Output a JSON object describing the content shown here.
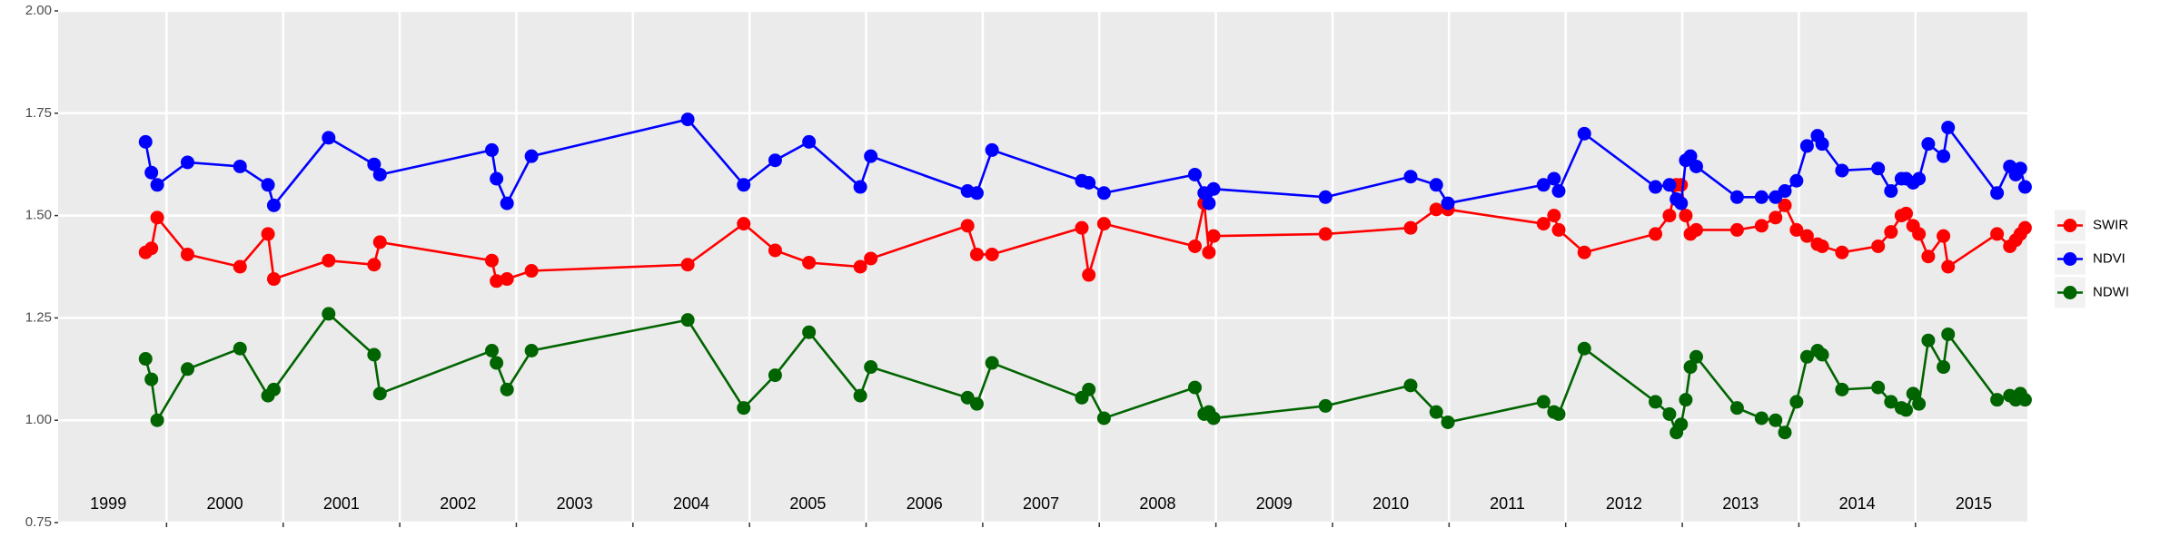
{
  "chart_data": {
    "type": "line",
    "x": [
      1999.82,
      1999.87,
      1999.92,
      2000.18,
      2000.63,
      2000.87,
      2000.92,
      2001.39,
      2001.78,
      2001.83,
      2002.79,
      2002.83,
      2002.92,
      2003.13,
      2004.47,
      2004.95,
      2005.22,
      2005.51,
      2005.95,
      2006.04,
      2006.87,
      2006.95,
      2007.08,
      2007.85,
      2007.91,
      2008.04,
      2008.82,
      2008.9,
      2008.94,
      2008.98,
      2009.94,
      2010.67,
      2010.89,
      2010.99,
      2011.81,
      2011.9,
      2011.94,
      2012.16,
      2012.77,
      2012.89,
      2012.95,
      2012.99,
      2013.03,
      2013.07,
      2013.12,
      2013.47,
      2013.68,
      2013.8,
      2013.88,
      2013.98,
      2014.07,
      2014.16,
      2014.2,
      2014.37,
      2014.68,
      2014.79,
      2014.88,
      2014.92,
      2014.98,
      2015.03,
      2015.11,
      2015.24,
      2015.28,
      2015.7,
      2015.81,
      2015.86,
      2015.9,
      2015.94
    ],
    "series": [
      {
        "name": "SWIR",
        "color": "#ff0000",
        "values": [
          1.41,
          1.42,
          1.495,
          1.405,
          1.375,
          1.455,
          1.345,
          1.39,
          1.38,
          1.435,
          1.39,
          1.34,
          1.345,
          1.365,
          1.38,
          1.48,
          1.415,
          1.385,
          1.375,
          1.395,
          1.475,
          1.405,
          1.405,
          1.47,
          1.355,
          1.48,
          1.425,
          1.53,
          1.41,
          1.45,
          1.455,
          1.47,
          1.515,
          1.515,
          1.48,
          1.5,
          1.465,
          1.41,
          1.455,
          1.5,
          1.575,
          1.575,
          1.5,
          1.455,
          1.465,
          1.465,
          1.475,
          1.495,
          1.525,
          1.465,
          1.45,
          1.43,
          1.425,
          1.41,
          1.425,
          1.46,
          1.5,
          1.505,
          1.475,
          1.455,
          1.4,
          1.45,
          1.375,
          1.455,
          1.425,
          1.44,
          1.455,
          1.47
        ]
      },
      {
        "name": "NDVI",
        "color": "#0000ff",
        "values": [
          1.68,
          1.605,
          1.575,
          1.63,
          1.62,
          1.575,
          1.525,
          1.69,
          1.625,
          1.6,
          1.66,
          1.59,
          1.53,
          1.645,
          1.735,
          1.575,
          1.635,
          1.68,
          1.57,
          1.645,
          1.56,
          1.555,
          1.66,
          1.585,
          1.58,
          1.555,
          1.6,
          1.555,
          1.53,
          1.565,
          1.545,
          1.595,
          1.575,
          1.53,
          1.575,
          1.59,
          1.56,
          1.7,
          1.57,
          1.575,
          1.54,
          1.53,
          1.635,
          1.645,
          1.62,
          1.545,
          1.545,
          1.545,
          1.56,
          1.585,
          1.67,
          1.695,
          1.675,
          1.61,
          1.615,
          1.56,
          1.59,
          1.59,
          1.58,
          1.59,
          1.675,
          1.645,
          1.715,
          1.555,
          1.62,
          1.6,
          1.615,
          1.57
        ]
      },
      {
        "name": "NDWI",
        "color": "#006400",
        "values": [
          1.15,
          1.1,
          1.0,
          1.125,
          1.175,
          1.06,
          1.075,
          1.26,
          1.16,
          1.065,
          1.17,
          1.14,
          1.075,
          1.17,
          1.245,
          1.03,
          1.11,
          1.215,
          1.06,
          1.13,
          1.055,
          1.04,
          1.14,
          1.055,
          1.075,
          1.005,
          1.08,
          1.015,
          1.02,
          1.005,
          1.035,
          1.085,
          1.02,
          0.995,
          1.045,
          1.02,
          1.015,
          1.175,
          1.045,
          1.015,
          0.97,
          0.99,
          1.05,
          1.13,
          1.155,
          1.03,
          1.005,
          1.0,
          0.97,
          1.045,
          1.155,
          1.17,
          1.16,
          1.075,
          1.08,
          1.045,
          1.03,
          1.025,
          1.065,
          1.04,
          1.195,
          1.13,
          1.21,
          1.05,
          1.06,
          1.05,
          1.065,
          1.05
        ]
      }
    ],
    "xlim": [
      1999.07,
      2015.96
    ],
    "xticks": [
      2000,
      2001,
      2002,
      2003,
      2004,
      2005,
      2006,
      2007,
      2008,
      2009,
      2010,
      2011,
      2012,
      2013,
      2014,
      2015
    ],
    "ylim": [
      0.75,
      2.0
    ],
    "yticks": [
      0.75,
      {
        "value": 1,
        "label": "1.00"
      },
      1.25,
      {
        "value": 1.5,
        "label": "1.50"
      },
      {
        "value": 1.75,
        "label": "1.75"
      },
      {
        "value": 2,
        "label": "2.00"
      }
    ],
    "grid": true,
    "legend": "right",
    "annotations": [
      {
        "text": "1999",
        "x": 1999.5
      },
      {
        "text": "2000",
        "x": 2000.5
      },
      {
        "text": "2001",
        "x": 2001.5
      },
      {
        "text": "2002",
        "x": 2002.5
      },
      {
        "text": "2003",
        "x": 2003.5
      },
      {
        "text": "2004",
        "x": 2004.5
      },
      {
        "text": "2005",
        "x": 2005.5
      },
      {
        "text": "2006",
        "x": 2006.5
      },
      {
        "text": "2007",
        "x": 2007.5
      },
      {
        "text": "2008",
        "x": 2008.5
      },
      {
        "text": "2009",
        "x": 2009.5
      },
      {
        "text": "2010",
        "x": 2010.5
      },
      {
        "text": "2011",
        "x": 2011.5
      },
      {
        "text": "2012",
        "x": 2012.5
      },
      {
        "text": "2013",
        "x": 2013.5
      },
      {
        "text": "2014",
        "x": 2014.5
      },
      {
        "text": "2015",
        "x": 2015.5
      }
    ]
  }
}
